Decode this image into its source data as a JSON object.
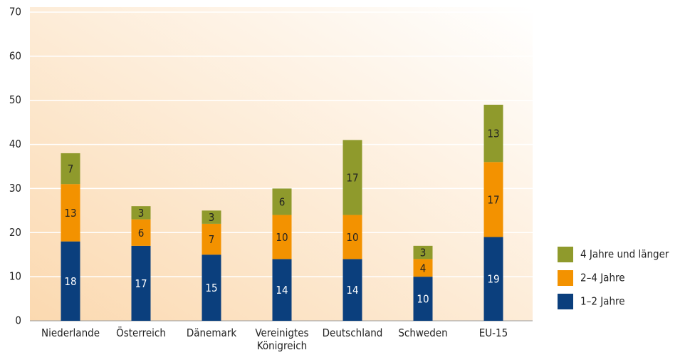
{
  "chart_data": {
    "type": "stacked_bar",
    "categories": [
      "Niederlande",
      "Österreich",
      "Dänemark",
      "Vereinigtes Königreich",
      "Deutschland",
      "Schweden",
      "EU-15"
    ],
    "series": [
      {
        "name": "1–2 Jahre",
        "color": "#0b3f7d",
        "values": [
          18,
          17,
          15,
          14,
          14,
          10,
          19
        ]
      },
      {
        "name": "2–4 Jahre",
        "color": "#f39200",
        "values": [
          13,
          6,
          7,
          10,
          10,
          4,
          17
        ]
      },
      {
        "name": "4 Jahre und länger",
        "color": "#8f9a2c",
        "values": [
          7,
          3,
          3,
          6,
          17,
          3,
          13
        ]
      }
    ],
    "ylim": [
      0,
      70
    ],
    "yticks": [
      0,
      10,
      20,
      30,
      40,
      50,
      60,
      70
    ],
    "grid": true,
    "legend": "right"
  }
}
